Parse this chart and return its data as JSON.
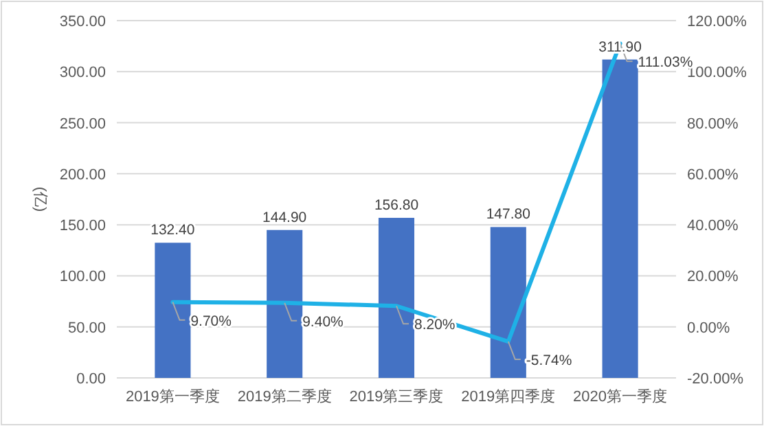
{
  "chart_data": {
    "type": "bar",
    "categories": [
      "2019第一季度",
      "2019第二季度",
      "2019第三季度",
      "2019第四季度",
      "2020第一季度"
    ],
    "ylabel": "(亿)",
    "series": [
      {
        "type": "bar",
        "color": "#4472c4",
        "values": [
          132.4,
          144.9,
          156.8,
          147.8,
          311.9
        ],
        "value_labels": [
          "132.40",
          "144.90",
          "156.80",
          "147.80",
          "311.90"
        ]
      },
      {
        "type": "line",
        "axis": "y2",
        "color": "#1fb1e6",
        "values": [
          9.7,
          9.4,
          8.2,
          -5.74,
          111.03
        ],
        "value_labels": [
          "9.70%",
          "9.40%",
          "8.20%",
          "-5.74%",
          "111.03%"
        ]
      }
    ],
    "ylim": [
      0,
      350
    ],
    "yticks": [
      {
        "value": 0,
        "label": "0.00"
      },
      {
        "value": 50,
        "label": "50.00"
      },
      {
        "value": 100,
        "label": "100.00"
      },
      {
        "value": 150,
        "label": "150.00"
      },
      {
        "value": 200,
        "label": "200.00"
      },
      {
        "value": 250,
        "label": "250.00"
      },
      {
        "value": 300,
        "label": "300.00"
      },
      {
        "value": 350,
        "label": "350.00"
      }
    ],
    "y2lim": [
      -20,
      120
    ],
    "y2ticks": [
      {
        "value": -20,
        "label": "-20.00%"
      },
      {
        "value": 0,
        "label": "0.00%"
      },
      {
        "value": 20,
        "label": "20.00%"
      },
      {
        "value": 40,
        "label": "40.00%"
      },
      {
        "value": 60,
        "label": "60.00%"
      },
      {
        "value": 80,
        "label": "80.00%"
      },
      {
        "value": 100,
        "label": "100.00%"
      },
      {
        "value": 120,
        "label": "120.00%"
      }
    ],
    "grid": "y",
    "legend": false
  }
}
